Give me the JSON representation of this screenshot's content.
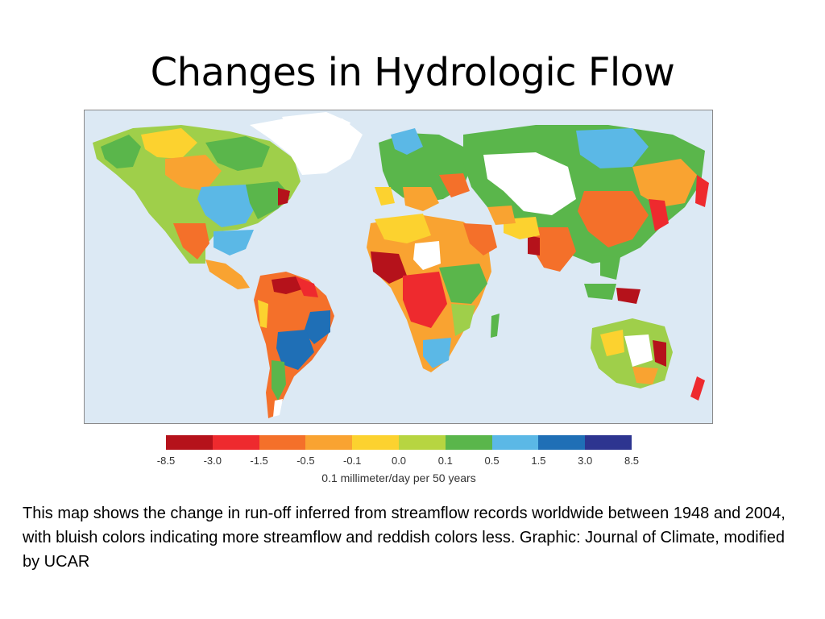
{
  "slide": {
    "title": "Changes in Hydrologic Flow",
    "caption": "This map shows the change in run-off inferred from streamflow records worldwide between 1948 and 2004, with bluish colors indicating more streamflow and reddish colors less. Graphic: Journal of Climate, modified by UCAR"
  },
  "legend": {
    "ticks": [
      "-8.5",
      "-3.0",
      "-1.5",
      "-0.5",
      "-0.1",
      "0.0",
      "0.1",
      "0.5",
      "1.5",
      "3.0",
      "8.5"
    ],
    "unit": "0.1 millimeter/day per 50 years",
    "colors": [
      "#b5121b",
      "#ee2a2e",
      "#f4702a",
      "#f9a331",
      "#fcd22f",
      "#b7d541",
      "#5ab64b",
      "#5bb8e6",
      "#1f6fb6",
      "#2d3590"
    ]
  },
  "map": {
    "ocean_color": "#dce9f4",
    "no_data_color": "#ffffff"
  }
}
